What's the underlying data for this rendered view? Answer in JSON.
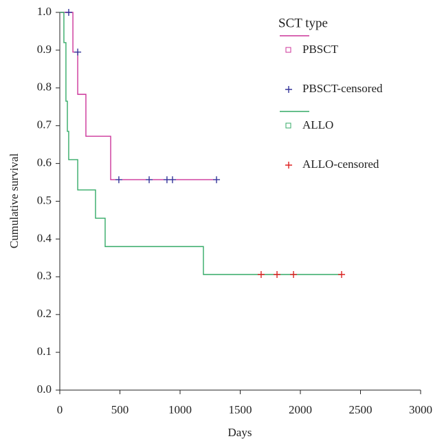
{
  "chart_data": {
    "type": "line",
    "x_label": "Days",
    "y_label": "Cumulative survival",
    "legend_title": "SCT type",
    "xlim": [
      0,
      3000
    ],
    "xticks": [
      0,
      500,
      1000,
      1500,
      2000,
      2500,
      3000
    ],
    "ylim": [
      0,
      1
    ],
    "yticks": [
      {
        "value": 0,
        "label": "0.0"
      },
      0.1,
      0.2,
      0.3,
      0.4,
      0.5,
      0.6,
      0.7,
      0.8,
      0.9,
      {
        "value": 1,
        "label": "1.0"
      }
    ],
    "series": [
      {
        "name": "PBSCT",
        "color": "#cc3399",
        "mode": "step",
        "x": [
          0,
          109,
          149,
          217,
          423,
          1303
        ],
        "values": [
          1,
          0.895,
          0.783,
          0.672,
          0.557,
          0.557
        ]
      },
      {
        "name": "PBSCT-censored",
        "color": "#333399",
        "mode": "points",
        "x": [
          74,
          149,
          491,
          743,
          891,
          937,
          1303
        ],
        "values": [
          1,
          0.895,
          0.557,
          0.557,
          0.557,
          0.557,
          0.557
        ]
      },
      {
        "name": "ALLO",
        "color": "#33aa66",
        "mode": "step",
        "x": [
          0,
          34,
          51,
          63,
          74,
          149,
          297,
          377,
          1194,
          2343
        ],
        "values": [
          1,
          0.92,
          0.765,
          0.685,
          0.61,
          0.53,
          0.455,
          0.38,
          0.306,
          0.306
        ]
      },
      {
        "name": "ALLO-censored",
        "color": "#dd2222",
        "mode": "points",
        "x": [
          1674,
          1806,
          1943,
          2343
        ],
        "values": [
          0.306,
          0.306,
          0.306,
          0.306
        ]
      }
    ]
  }
}
